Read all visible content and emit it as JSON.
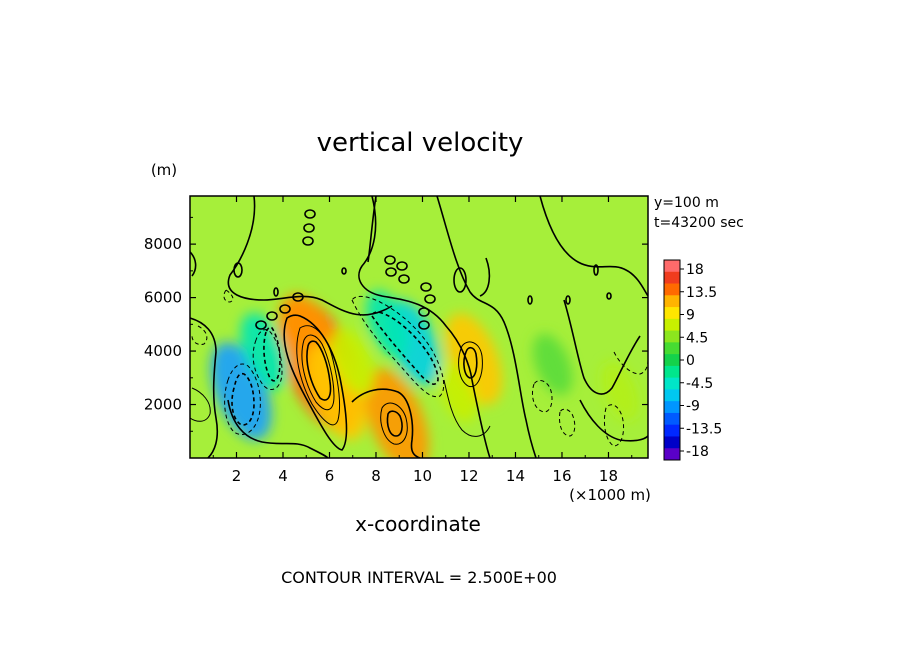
{
  "chart_data": {
    "type": "heatmap",
    "title": "vertical velocity",
    "xlabel": "x-coordinate",
    "x_unit": "(×1000 m)",
    "y_unit": "(m)",
    "xlim": [
      0,
      19.7
    ],
    "ylim": [
      0,
      9800
    ],
    "x_ticks": [
      "2",
      "4",
      "6",
      "8",
      "10",
      "12",
      "14",
      "16",
      "18"
    ],
    "x_tick_values": [
      2,
      4,
      6,
      8,
      10,
      12,
      14,
      16,
      18
    ],
    "y_ticks": [
      "2000",
      "4000",
      "6000",
      "8000"
    ],
    "y_tick_values": [
      2000,
      4000,
      6000,
      8000
    ],
    "annotations": [
      "y=100 m",
      "t=43200 sec"
    ],
    "footer": "CONTOUR INTERVAL = 2.500E+00",
    "colorbar": {
      "labels": [
        "18",
        "13.5",
        "9",
        "4.5",
        "0",
        "-4.5",
        "-9",
        "-13.5",
        "-18"
      ],
      "colors": [
        "#ff6a6a",
        "#f03c1e",
        "#ff6a00",
        "#ffb400",
        "#ffe600",
        "#c8f000",
        "#8ce61e",
        "#46dc32",
        "#14d24b",
        "#00e68c",
        "#00e6c8",
        "#00c8f0",
        "#0096ff",
        "#005aff",
        "#0028ff",
        "#0000c8",
        "#5a00c8"
      ]
    },
    "features": [
      {
        "x": 5.6,
        "y": 3500,
        "value": 14
      },
      {
        "x": 5.2,
        "y": 4200,
        "value": 9
      },
      {
        "x": 6.3,
        "y": 2500,
        "value": 8
      },
      {
        "x": 8.9,
        "y": 1400,
        "value": 9
      },
      {
        "x": 12.2,
        "y": 3700,
        "value": 7
      },
      {
        "x": 7.0,
        "y": 3600,
        "value": 3
      },
      {
        "x": 15.6,
        "y": 3500,
        "value": -2
      },
      {
        "x": 2.2,
        "y": 2500,
        "value": -8
      },
      {
        "x": 3.2,
        "y": 4000,
        "value": -4.5
      },
      {
        "x": 9.6,
        "y": 4300,
        "value": -6
      },
      {
        "x": 8.5,
        "y": 5000,
        "value": -3
      },
      {
        "x": 11.5,
        "y": 2500,
        "value": 2
      },
      {
        "x": 18.5,
        "y": 2500,
        "value": 1.5
      }
    ]
  }
}
